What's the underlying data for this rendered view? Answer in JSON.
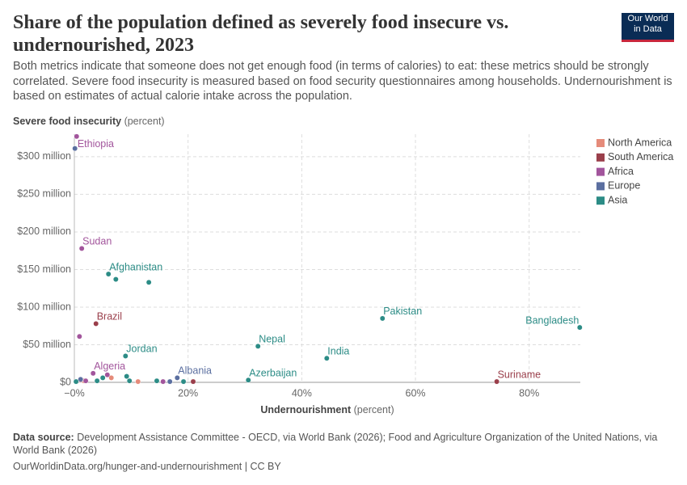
{
  "header": {
    "logo_line1": "Our World",
    "logo_line2": "in Data"
  },
  "chart_data": {
    "type": "scatter",
    "title": "Share of the population defined as severely food insecure vs. undernourished, 2023",
    "subtitle": "Both metrics indicate that someone does not get enough food (in terms of calories) to eat: these metrics should be strongly correlated. Severe food insecurity is measured based on food security questionnaires among households. Undernourishment is based on estimates of actual calorie intake across the population.",
    "y_label": "Severe food insecurity",
    "y_unit": "(percent)",
    "x_label": "Undernourishment",
    "x_unit": "(percent)",
    "xlim": [
      0,
      89
    ],
    "ylim": [
      0,
      330000000
    ],
    "xticks": [
      {
        "value": 0,
        "label": "−0%"
      },
      {
        "value": 20,
        "label": "20%"
      },
      {
        "value": 40,
        "label": "40%"
      },
      {
        "value": 60,
        "label": "60%"
      },
      {
        "value": 80,
        "label": "80%"
      }
    ],
    "yticks": [
      {
        "value": 0,
        "label": "$0"
      },
      {
        "value": 50000000,
        "label": "$50 million"
      },
      {
        "value": 100000000,
        "label": "$100 million"
      },
      {
        "value": 150000000,
        "label": "$150 million"
      },
      {
        "value": 200000000,
        "label": "$200 million"
      },
      {
        "value": 250000000,
        "label": "$250 million"
      },
      {
        "value": 300000000,
        "label": "$300 million"
      }
    ],
    "grid": true,
    "series": [
      {
        "name": "North America",
        "color": "#e58b7a",
        "x": [
          6.5,
          11.2,
          1.7
        ],
        "values": [
          6000000,
          1000000,
          2000000
        ],
        "labels": [
          null,
          null,
          null
        ]
      },
      {
        "name": "South America",
        "color": "#9a3f4b",
        "x": [
          3.8,
          74.3,
          20.9,
          1.1
        ],
        "values": [
          78000000,
          1000000,
          1000000,
          3000000
        ],
        "labels": [
          "Brazil",
          "Suriname",
          null,
          null
        ]
      },
      {
        "name": "Africa",
        "color": "#a2559c",
        "x": [
          0.4,
          1.3,
          0.9,
          3.3,
          2.0,
          15.6,
          5.8
        ],
        "values": [
          327000000,
          178000000,
          61000000,
          12000000,
          2000000,
          1000000,
          10000000
        ],
        "labels": [
          "Ethiopia",
          "Sudan",
          null,
          "Algeria",
          null,
          null,
          null
        ]
      },
      {
        "name": "Europe",
        "color": "#5b6fa0",
        "x": [
          0.1,
          18.1,
          1.1,
          0.3,
          16.8
        ],
        "values": [
          311000000,
          6000000,
          4000000,
          1000000,
          1000000
        ],
        "labels": [
          null,
          "Albania",
          null,
          null,
          null
        ]
      },
      {
        "name": "Asia",
        "color": "#2c8c86",
        "x": [
          6.0,
          7.3,
          13.1,
          54.2,
          88.9,
          32.3,
          44.4,
          9.0,
          30.6,
          9.2,
          5.0,
          4.0,
          9.7,
          14.5,
          19.2,
          0.3
        ],
        "values": [
          144000000,
          137000000,
          133000000,
          85000000,
          73000000,
          48000000,
          32000000,
          35000000,
          3000000,
          8000000,
          6000000,
          2000000,
          2000000,
          2000000,
          1000000,
          1000000
        ],
        "labels": [
          "Afghanistan",
          null,
          null,
          "Pakistan",
          "Bangladesh",
          "Nepal",
          "India",
          "Jordan",
          "Azerbaijan",
          null,
          null,
          null,
          null,
          null,
          null,
          null
        ]
      }
    ]
  },
  "footer": {
    "source_label": "Data source:",
    "source_text": "Development Assistance Committee - OECD, via World Bank (2026); Food and Agriculture Organization of the United Nations, via World Bank (2026)",
    "url": "OurWorldinData.org/hunger-and-undernourishment | CC BY"
  }
}
